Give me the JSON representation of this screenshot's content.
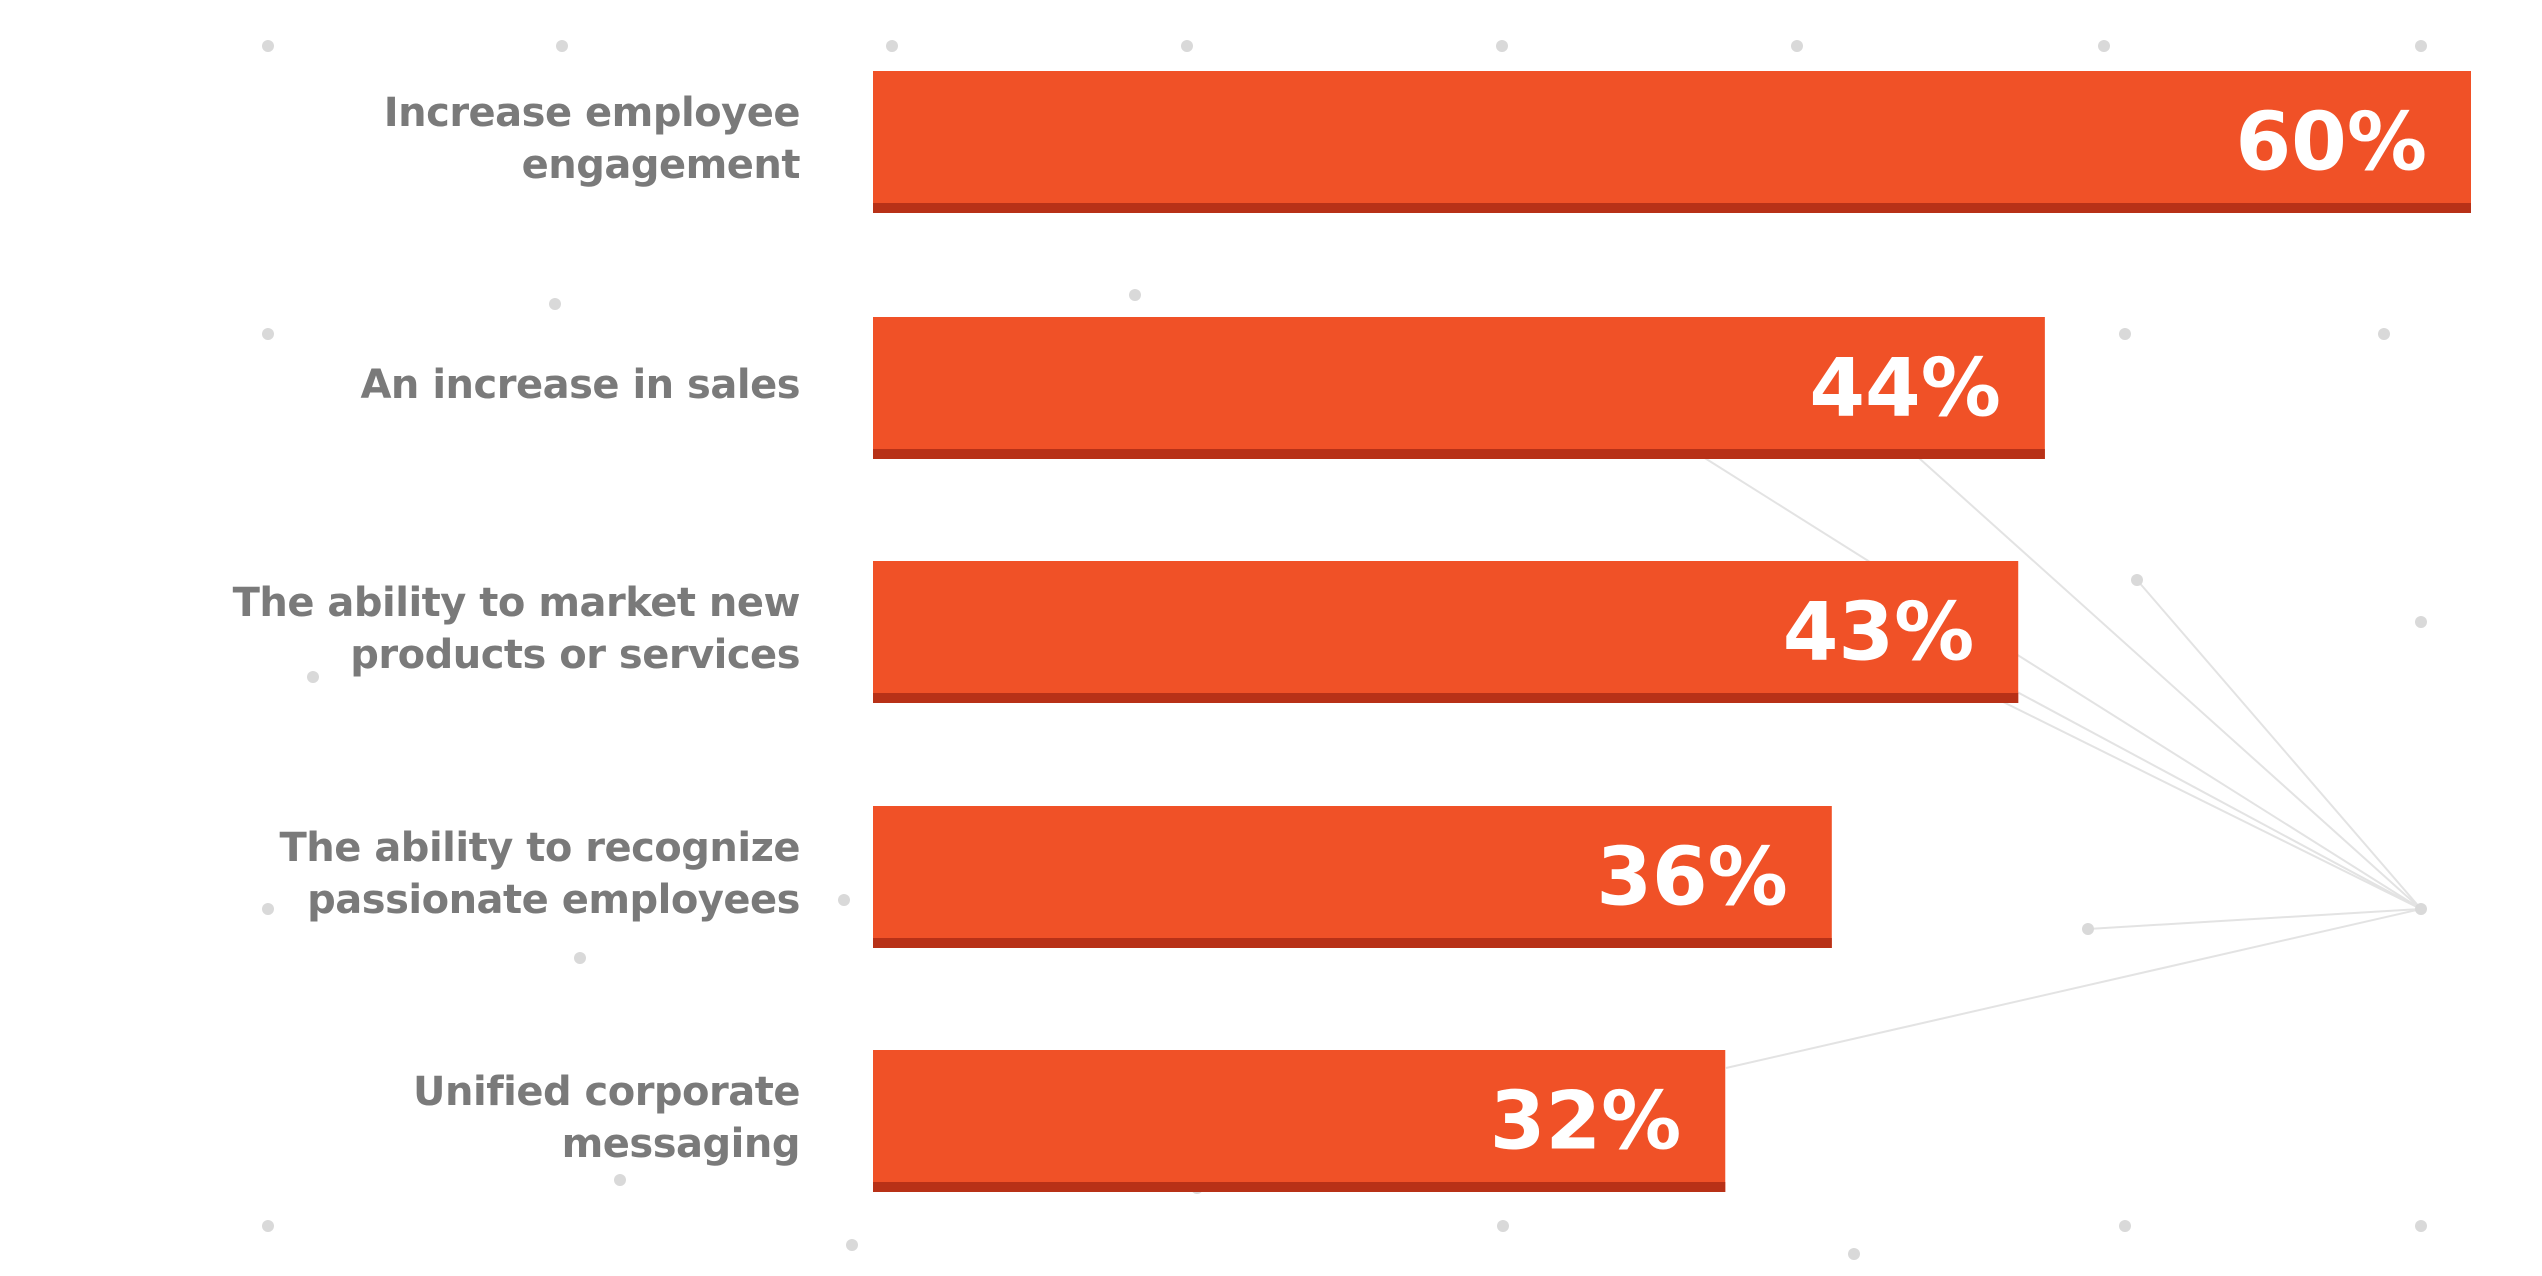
{
  "colors": {
    "bar": "#f05127",
    "bar_shadow": "#b83117",
    "label": "#7a7a7a",
    "value_text": "#ffffff",
    "dots": "#d9d9d9",
    "lines": "#e3e3e3"
  },
  "chart_data": {
    "type": "bar",
    "orientation": "horizontal",
    "categories": [
      "Increase employee engagement",
      "An increase in sales",
      "The ability to market new\nproducts or services",
      "The ability to recognize\npassionate employees",
      "Unified corporate\nmessaging"
    ],
    "values": [
      60,
      44,
      43,
      36,
      32
    ],
    "value_labels": [
      "60%",
      "44%",
      "43%",
      "36%",
      "32%"
    ],
    "xlim": [
      0,
      60
    ],
    "grid": false,
    "legend": "none"
  }
}
